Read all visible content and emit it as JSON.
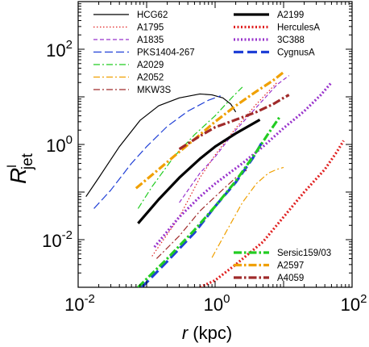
{
  "chart_data": {
    "type": "line",
    "title": "",
    "xlabel": {
      "italic": "r",
      "rest": " (kpc)"
    },
    "ylabel": {
      "main": "R",
      "sup": "l",
      "sub": "jet"
    },
    "xscale": "log",
    "yscale": "log",
    "xlim": [
      0.01,
      100
    ],
    "ylim": [
      0.001,
      1000
    ],
    "grid": false,
    "x_ticks": [
      {
        "mantissa": "10",
        "exp": "-2",
        "value": 0.01
      },
      {
        "mantissa": "10",
        "exp": "0",
        "value": 1
      },
      {
        "mantissa": "10",
        "exp": "2",
        "value": 100
      }
    ],
    "y_ticks": [
      {
        "mantissa": "10",
        "exp": "-2",
        "value": 0.01
      },
      {
        "mantissa": "10",
        "exp": "0",
        "value": 1
      },
      {
        "mantissa": "10",
        "exp": "2",
        "value": 100
      }
    ],
    "legend_placement": [
      "top-left",
      "top-right",
      "bottom-right"
    ],
    "series": [
      {
        "name": "HCG62",
        "color": "#000000",
        "dash": "solid",
        "width": 1.2,
        "legend_group": 0,
        "points": [
          [
            0.013,
            0.08
          ],
          [
            0.02,
            0.2
          ],
          [
            0.04,
            0.9
          ],
          [
            0.08,
            3.2
          ],
          [
            0.15,
            6.5
          ],
          [
            0.3,
            9.5
          ],
          [
            0.6,
            11.5
          ],
          [
            0.9,
            11.0
          ],
          [
            1.3,
            9.5
          ],
          [
            1.7,
            7.0
          ],
          [
            2.0,
            4.8
          ]
        ]
      },
      {
        "name": "A1795",
        "color": "#e02020",
        "dash": "dot",
        "width": 1.2,
        "legend_group": 0,
        "points": [
          [
            0.12,
            0.0045
          ],
          [
            0.3,
            0.03
          ],
          [
            0.6,
            0.2
          ],
          [
            1.0,
            0.6
          ],
          [
            2.0,
            2.2
          ],
          [
            4.0,
            7.0
          ],
          [
            8.0,
            20.0
          ]
        ]
      },
      {
        "name": "A1835",
        "color": "#9933cc",
        "dash": "dash-short",
        "width": 1.2,
        "legend_group": 0,
        "points": [
          [
            0.3,
            0.06
          ],
          [
            0.6,
            0.25
          ],
          [
            1.0,
            0.55
          ],
          [
            2.0,
            2.0
          ],
          [
            4.0,
            6.0
          ],
          [
            8.0,
            18.0
          ],
          [
            12.0,
            28.0
          ]
        ]
      },
      {
        "name": "PKS1404-267",
        "color": "#1f3fd6",
        "dash": "dash-long",
        "width": 1.2,
        "legend_group": 0,
        "points": [
          [
            0.017,
            0.045
          ],
          [
            0.03,
            0.11
          ],
          [
            0.06,
            0.4
          ],
          [
            0.1,
            0.9
          ],
          [
            0.2,
            2.4
          ],
          [
            0.4,
            5.0
          ],
          [
            0.8,
            8.5
          ],
          [
            1.2,
            10.5
          ]
        ]
      },
      {
        "name": "A2029",
        "color": "#22cc22",
        "dash": "dashdot",
        "width": 1.2,
        "legend_group": 0,
        "points": [
          [
            0.075,
            0.045
          ],
          [
            0.12,
            0.13
          ],
          [
            0.25,
            0.55
          ],
          [
            0.5,
            1.6
          ],
          [
            1.0,
            4.0
          ],
          [
            1.8,
            10.0
          ],
          [
            2.5,
            16.0
          ]
        ]
      },
      {
        "name": "A2052",
        "color": "#f0a000",
        "dash": "dashdot",
        "width": 1.2,
        "legend_group": 0,
        "points": [
          [
            0.9,
            0.0042
          ],
          [
            1.5,
            0.016
          ],
          [
            2.5,
            0.06
          ],
          [
            4.0,
            0.15
          ],
          [
            6.0,
            0.25
          ],
          [
            8.0,
            0.3
          ],
          [
            10.0,
            0.33
          ]
        ]
      },
      {
        "name": "MKW3S",
        "color": "#a02a2a",
        "dash": "dashdot",
        "width": 1.2,
        "legend_group": 0,
        "points": [
          [
            0.14,
            0.004
          ],
          [
            0.3,
            0.012
          ],
          [
            0.6,
            0.04
          ],
          [
            1.0,
            0.08
          ],
          [
            2.0,
            0.2
          ],
          [
            3.0,
            0.3
          ]
        ]
      },
      {
        "name": "A2199",
        "color": "#000000",
        "dash": "solid",
        "width": 3.2,
        "legend_group": 1,
        "points": [
          [
            0.075,
            0.022
          ],
          [
            0.15,
            0.07
          ],
          [
            0.3,
            0.2
          ],
          [
            0.6,
            0.5
          ],
          [
            1.0,
            0.9
          ],
          [
            2.0,
            1.7
          ],
          [
            4.5,
            3.3
          ]
        ]
      },
      {
        "name": "HerculesA",
        "color": "#e02020",
        "dash": "dot",
        "width": 3.2,
        "legend_group": 1,
        "points": [
          [
            0.6,
            0.001
          ],
          [
            1.0,
            0.0014
          ],
          [
            2.0,
            0.003
          ],
          [
            5.0,
            0.009
          ],
          [
            10.0,
            0.03
          ],
          [
            20.0,
            0.1
          ],
          [
            40.0,
            0.3
          ],
          [
            60.0,
            0.7
          ],
          [
            75.0,
            1.2
          ]
        ]
      },
      {
        "name": "3C388",
        "color": "#9933cc",
        "dash": "dot",
        "width": 3.2,
        "legend_group": 1,
        "points": [
          [
            0.13,
            0.007
          ],
          [
            0.3,
            0.03
          ],
          [
            0.6,
            0.08
          ],
          [
            1.0,
            0.15
          ],
          [
            2.5,
            0.4
          ],
          [
            5.0,
            0.9
          ],
          [
            10.0,
            2.2
          ],
          [
            20.0,
            5.0
          ],
          [
            35.0,
            11.0
          ],
          [
            50.0,
            20.0
          ]
        ]
      },
      {
        "name": "CygnusA",
        "color": "#1f3fd6",
        "dash": "dash-long",
        "width": 3.2,
        "legend_group": 1,
        "points": [
          [
            0.085,
            0.001
          ],
          [
            0.2,
            0.0035
          ],
          [
            0.5,
            0.014
          ],
          [
            1.0,
            0.05
          ],
          [
            2.0,
            0.16
          ],
          [
            3.5,
            0.5
          ],
          [
            5.0,
            1.2
          ]
        ]
      },
      {
        "name": "Sersic159/03",
        "color": "#22cc22",
        "dash": "dashdot",
        "width": 3.2,
        "legend_group": 2,
        "points": [
          [
            0.075,
            0.001
          ],
          [
            0.2,
            0.004
          ],
          [
            0.5,
            0.016
          ],
          [
            1.0,
            0.05
          ],
          [
            2.0,
            0.17
          ],
          [
            4.0,
            0.7
          ],
          [
            6.0,
            1.7
          ],
          [
            9.0,
            4.0
          ]
        ]
      },
      {
        "name": "A2597",
        "color": "#f0a000",
        "dash": "dashdot",
        "width": 3.2,
        "legend_group": 2,
        "points": [
          [
            0.07,
            0.12
          ],
          [
            0.15,
            0.3
          ],
          [
            0.3,
            0.7
          ],
          [
            0.6,
            1.6
          ],
          [
            1.0,
            3.0
          ],
          [
            2.0,
            6.5
          ],
          [
            4.0,
            13.0
          ],
          [
            7.0,
            22.0
          ],
          [
            10.0,
            33.0
          ]
        ]
      },
      {
        "name": "A4059",
        "color": "#a02a2a",
        "dash": "dashdot",
        "width": 3.2,
        "legend_group": 2,
        "points": [
          [
            0.3,
            0.8
          ],
          [
            0.6,
            1.5
          ],
          [
            1.0,
            2.3
          ],
          [
            2.0,
            3.3
          ],
          [
            4.0,
            4.8
          ],
          [
            7.0,
            7.0
          ],
          [
            10.0,
            9.5
          ],
          [
            12.0,
            11.0
          ]
        ]
      }
    ]
  }
}
